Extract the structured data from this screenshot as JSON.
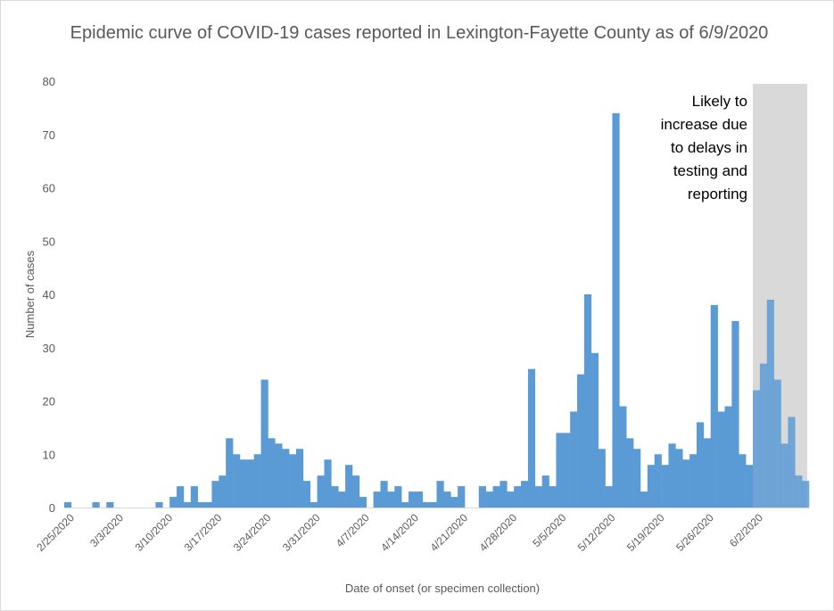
{
  "chart_data": {
    "type": "bar",
    "title": "Epidemic curve of COVID-19 cases reported in Lexington-Fayette County as of 6/9/2020",
    "xlabel": "Date of onset (or specimen collection)",
    "ylabel": "Number of cases",
    "ylim": [
      0,
      80
    ],
    "yticks": [
      0,
      10,
      20,
      30,
      40,
      50,
      60,
      70,
      80
    ],
    "grid": false,
    "x_tick_labels": [
      "2/25/2020",
      "3/3/2020",
      "3/10/2020",
      "3/17/2020",
      "3/24/2020",
      "3/31/2020",
      "4/7/2020",
      "4/14/2020",
      "4/21/2020",
      "4/28/2020",
      "5/5/2020",
      "5/12/2020",
      "5/19/2020",
      "5/26/2020",
      "6/2/2020"
    ],
    "x_start_date": "2/24/2020",
    "bar_color": "#5b9bd5",
    "values": [
      1,
      0,
      0,
      0,
      1,
      0,
      1,
      0,
      0,
      0,
      0,
      0,
      0,
      1,
      0,
      2,
      4,
      1,
      4,
      1,
      1,
      5,
      6,
      13,
      10,
      9,
      9,
      10,
      24,
      13,
      12,
      11,
      10,
      11,
      5,
      1,
      6,
      9,
      4,
      3,
      8,
      6,
      2,
      0,
      3,
      5,
      3,
      4,
      1,
      3,
      3,
      1,
      1,
      5,
      3,
      2,
      4,
      0,
      0,
      4,
      3,
      4,
      5,
      3,
      4,
      5,
      26,
      4,
      6,
      4,
      14,
      14,
      18,
      25,
      40,
      29,
      11,
      4,
      74,
      19,
      13,
      11,
      3,
      8,
      10,
      8,
      12,
      11,
      9,
      10,
      16,
      13,
      38,
      18,
      19,
      35,
      10,
      8,
      22,
      27,
      39,
      24,
      12,
      17,
      6,
      5
    ],
    "annotation": {
      "text_lines": [
        "Likely to",
        "increase due",
        "to delays in",
        "testing and",
        "reporting"
      ],
      "shade_from_date": "6/1/2020",
      "shade_color": "#d9d9d9"
    }
  }
}
